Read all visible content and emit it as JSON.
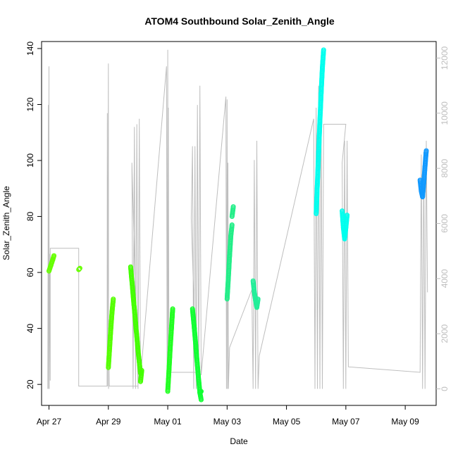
{
  "chart_data": {
    "type": "scatter",
    "title": "ATOM4 Southbound Solar_Zenith_Angle",
    "xlabel": "Date",
    "ylabel": "Solar_Zenith_Angle",
    "x_ticks": [
      "Apr 27",
      "Apr 29",
      "May 01",
      "May 03",
      "May 05",
      "May 07",
      "May 09"
    ],
    "y_ticks": [
      "20",
      "40",
      "60",
      "80",
      "100",
      "120",
      "140"
    ],
    "y_right_ticks": [
      "0",
      "2000",
      "4000",
      "6000",
      "8000",
      "10000",
      "12000"
    ],
    "xlim": [
      "2016-04-26T18:00",
      "2016-05-10T01:00"
    ],
    "ylim": [
      12.5,
      142.5
    ],
    "y_right_lim": [
      -600,
      12600
    ],
    "grid": false,
    "legend": "none",
    "colors": {
      "altitude_line": "#bebebe",
      "axis": "#000000",
      "right_axis": "#bebebe"
    },
    "series": [
      {
        "axis": "left",
        "style": "points",
        "segments": [
          {
            "color": "#66ff00",
            "points": [
              [
                "2016-04-27T00:00",
                60.5
              ],
              [
                "2016-04-27T01:30",
                62.5
              ],
              [
                "2016-04-27T03:00",
                64.5
              ],
              [
                "2016-04-27T04:00",
                66
              ]
            ]
          },
          {
            "color": "#66ff00",
            "points": [
              [
                "2016-04-28T00:00",
                61
              ],
              [
                "2016-04-28T01:00",
                61.5
              ]
            ]
          },
          {
            "color": "#55ff00",
            "points": [
              [
                "2016-04-29T00:00",
                26
              ],
              [
                "2016-04-29T01:00",
                33
              ],
              [
                "2016-04-29T02:00",
                40
              ],
              [
                "2016-04-29T03:00",
                46
              ],
              [
                "2016-04-29T04:00",
                50.5
              ]
            ]
          },
          {
            "color": "#44ff00",
            "points": [
              [
                "2016-04-29T18:00",
                62
              ],
              [
                "2016-04-29T20:00",
                52
              ],
              [
                "2016-04-29T22:00",
                42
              ],
              [
                "2016-04-30T00:00",
                32
              ],
              [
                "2016-04-30T02:00",
                24
              ]
            ]
          },
          {
            "color": "#44ff00",
            "points": [
              [
                "2016-04-30T02:00",
                21
              ],
              [
                "2016-04-30T03:00",
                25
              ]
            ]
          },
          {
            "color": "#22ff22",
            "points": [
              [
                "2016-05-01T00:00",
                17.5
              ],
              [
                "2016-05-01T01:00",
                25
              ],
              [
                "2016-05-01T02:00",
                33
              ],
              [
                "2016-05-01T03:00",
                40
              ],
              [
                "2016-05-01T04:00",
                47
              ]
            ]
          },
          {
            "color": "#11ff33",
            "points": [
              [
                "2016-05-01T20:00",
                47
              ],
              [
                "2016-05-01T21:30",
                40
              ],
              [
                "2016-05-01T23:00",
                32
              ],
              [
                "2016-05-02T00:30",
                24
              ],
              [
                "2016-05-02T02:00",
                17
              ],
              [
                "2016-05-02T03:00",
                14.5
              ]
            ]
          },
          {
            "color": "#11ff33",
            "points": [
              [
                "2016-05-02T02:00",
                17
              ],
              [
                "2016-05-02T03:00",
                17.5
              ]
            ]
          },
          {
            "color": "#22ee88",
            "points": [
              [
                "2016-05-03T00:00",
                50.5
              ],
              [
                "2016-05-03T01:00",
                58
              ],
              [
                "2016-05-03T02:00",
                66
              ],
              [
                "2016-05-03T03:00",
                73
              ],
              [
                "2016-05-03T04:00",
                77
              ]
            ]
          },
          {
            "color": "#22ee88",
            "points": [
              [
                "2016-05-03T04:00",
                80
              ],
              [
                "2016-05-03T05:00",
                83.5
              ]
            ]
          },
          {
            "color": "#22ee99",
            "points": [
              [
                "2016-05-03T21:00",
                57
              ],
              [
                "2016-05-03T22:00",
                53
              ],
              [
                "2016-05-03T23:00",
                50
              ],
              [
                "2016-05-04T00:00",
                47.5
              ],
              [
                "2016-05-04T01:00",
                50.5
              ]
            ]
          },
          {
            "color": "#00ffee",
            "points": [
              [
                "2016-05-06T00:00",
                81
              ],
              [
                "2016-05-06T01:00",
                92
              ],
              [
                "2016-05-06T02:00",
                103
              ],
              [
                "2016-05-06T03:00",
                114
              ],
              [
                "2016-05-06T04:00",
                124
              ],
              [
                "2016-05-06T05:00",
                133
              ],
              [
                "2016-05-06T06:00",
                139.5
              ]
            ]
          },
          {
            "color": "#00ffee",
            "points": [
              [
                "2016-05-06T21:00",
                82
              ],
              [
                "2016-05-06T22:00",
                76
              ],
              [
                "2016-05-06T23:00",
                72
              ],
              [
                "2016-05-07T00:00",
                76
              ],
              [
                "2016-05-07T01:00",
                80.5
              ]
            ]
          },
          {
            "color": "#1199ff",
            "points": [
              [
                "2016-05-09T12:00",
                93
              ],
              [
                "2016-05-09T13:00",
                89
              ],
              [
                "2016-05-09T14:00",
                87
              ],
              [
                "2016-05-09T15:00",
                92
              ],
              [
                "2016-05-09T16:00",
                98
              ],
              [
                "2016-05-09T17:00",
                103.5
              ]
            ]
          }
        ]
      },
      {
        "axis": "right",
        "style": "line",
        "color": "#bebebe",
        "points": [
          [
            "2016-04-26T23:00",
            0
          ],
          [
            "2016-04-26T23:30",
            10300
          ],
          [
            "2016-04-26T23:45",
            0
          ],
          [
            "2016-04-27T00:00",
            11700
          ],
          [
            "2016-04-27T00:10",
            0
          ],
          [
            "2016-04-27T00:20",
            4900
          ],
          [
            "2016-04-27T01:00",
            300
          ],
          [
            "2016-04-27T01:00",
            5100
          ],
          [
            "2016-04-28T00:00",
            5100
          ],
          [
            "2016-04-28T00:00",
            100
          ],
          [
            "2016-04-28T23:00",
            100
          ],
          [
            "2016-04-28T23:10",
            10000
          ],
          [
            "2016-04-28T23:20",
            100
          ],
          [
            "2016-04-29T00:00",
            11800
          ],
          [
            "2016-04-29T00:10",
            0
          ],
          [
            "2016-04-29T00:30",
            800
          ],
          [
            "2016-04-29T00:40",
            100
          ],
          [
            "2016-04-30T00:00",
            100
          ],
          [
            "2016-04-29T19:00",
            8200
          ],
          [
            "2016-04-29T20:00",
            0
          ],
          [
            "2016-04-29T21:00",
            9500
          ],
          [
            "2016-04-29T22:00",
            0
          ],
          [
            "2016-04-29T23:00",
            9600
          ],
          [
            "2016-04-30T00:00",
            0
          ],
          [
            "2016-04-30T01:00",
            9800
          ],
          [
            "2016-04-30T02:00",
            400
          ],
          [
            "2016-04-30T23:00",
            11700
          ],
          [
            "2016-04-30T23:30",
            0
          ],
          [
            "2016-05-01T00:00",
            12300
          ],
          [
            "2016-05-01T00:10",
            0
          ],
          [
            "2016-05-01T00:30",
            10200
          ],
          [
            "2016-05-01T01:00",
            600
          ],
          [
            "2016-05-01T01:00",
            600
          ],
          [
            "2016-05-01T23:00",
            600
          ],
          [
            "2016-05-01T19:00",
            6200
          ],
          [
            "2016-05-01T20:00",
            8800
          ],
          [
            "2016-05-01T21:00",
            0
          ],
          [
            "2016-05-01T22:00",
            8800
          ],
          [
            "2016-05-01T23:00",
            0
          ],
          [
            "2016-05-02T00:00",
            10300
          ],
          [
            "2016-05-02T01:00",
            0
          ],
          [
            "2016-05-02T02:00",
            11000
          ],
          [
            "2016-05-02T03:00",
            500
          ],
          [
            "2016-05-02T23:00",
            10600
          ],
          [
            "2016-05-02T23:30",
            0
          ],
          [
            "2016-05-03T00:00",
            10500
          ],
          [
            "2016-05-03T00:20",
            0
          ],
          [
            "2016-05-03T00:40",
            8200
          ],
          [
            "2016-05-03T01:00",
            0
          ],
          [
            "2016-05-03T02:00",
            1500
          ],
          [
            "2016-05-03T20:00",
            3600
          ],
          [
            "2016-05-03T21:00",
            0
          ],
          [
            "2016-05-03T22:00",
            8300
          ],
          [
            "2016-05-03T23:00",
            0
          ],
          [
            "2016-05-04T00:00",
            9000
          ],
          [
            "2016-05-04T01:00",
            0
          ],
          [
            "2016-05-04T02:00",
            1200
          ],
          [
            "2016-05-05T22:00",
            9800
          ],
          [
            "2016-05-05T23:00",
            0
          ],
          [
            "2016-05-06T00:00",
            10200
          ],
          [
            "2016-05-06T01:00",
            0
          ],
          [
            "2016-05-06T02:00",
            11000
          ],
          [
            "2016-05-06T03:00",
            0
          ],
          [
            "2016-05-06T04:00",
            10000
          ],
          [
            "2016-05-06T05:00",
            0
          ],
          [
            "2016-05-06T06:00",
            9600
          ],
          [
            "2016-05-07T00:00",
            9600
          ],
          [
            "2016-05-06T21:00",
            8200
          ],
          [
            "2016-05-06T22:00",
            0
          ],
          [
            "2016-05-06T23:00",
            9000
          ],
          [
            "2016-05-07T00:00",
            0
          ],
          [
            "2016-05-07T01:00",
            9000
          ],
          [
            "2016-05-07T02:00",
            800
          ],
          [
            "2016-05-09T12:00",
            600
          ],
          [
            "2016-05-09T13:00",
            8500
          ],
          [
            "2016-05-09T14:00",
            0
          ],
          [
            "2016-05-09T15:00",
            8600
          ],
          [
            "2016-05-09T16:00",
            0
          ],
          [
            "2016-05-09T17:00",
            9000
          ],
          [
            "2016-05-09T18:00",
            3500
          ]
        ]
      }
    ]
  }
}
